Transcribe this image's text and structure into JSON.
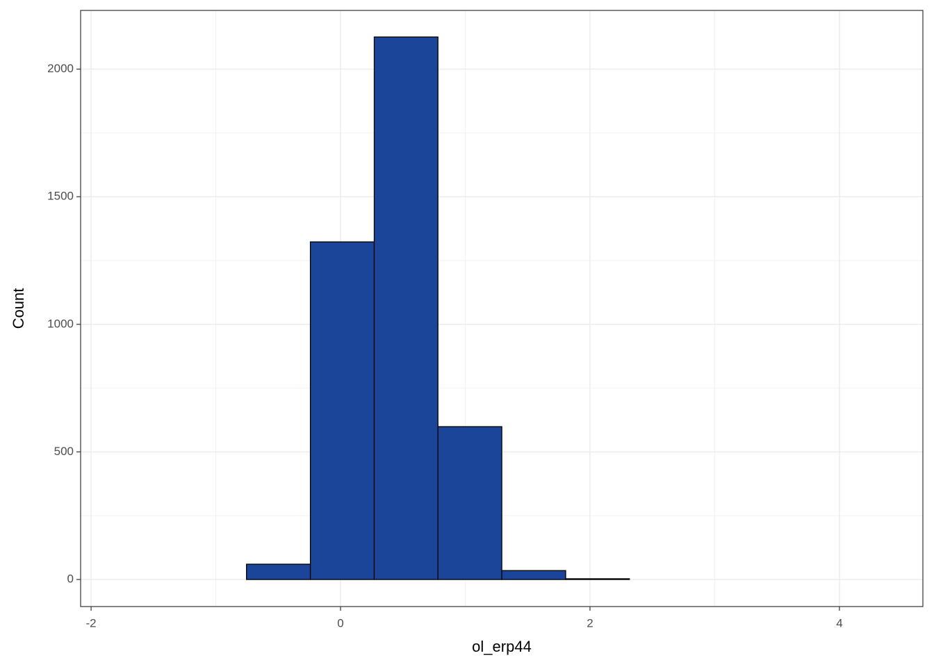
{
  "chart_data": {
    "type": "histogram",
    "x_label": "ol_erp44",
    "y_label": "Count",
    "bins": [
      -1.777,
      -1.265,
      -0.754,
      -0.242,
      0.27,
      0.781,
      1.293,
      1.805,
      2.316,
      2.828,
      3.339,
      3.851,
      4.362
    ],
    "values": [
      0,
      0,
      60,
      1323,
      2126,
      599,
      35,
      3,
      0,
      0,
      0,
      0
    ],
    "color": "#1a4599",
    "xlim": [
      -2.084,
      4.669
    ],
    "ylim": [
      -106,
      2230
    ],
    "xticks": [
      -2,
      0,
      2,
      4
    ],
    "yticks": [
      0,
      500,
      1000,
      1500,
      2000
    ],
    "grid": true
  }
}
